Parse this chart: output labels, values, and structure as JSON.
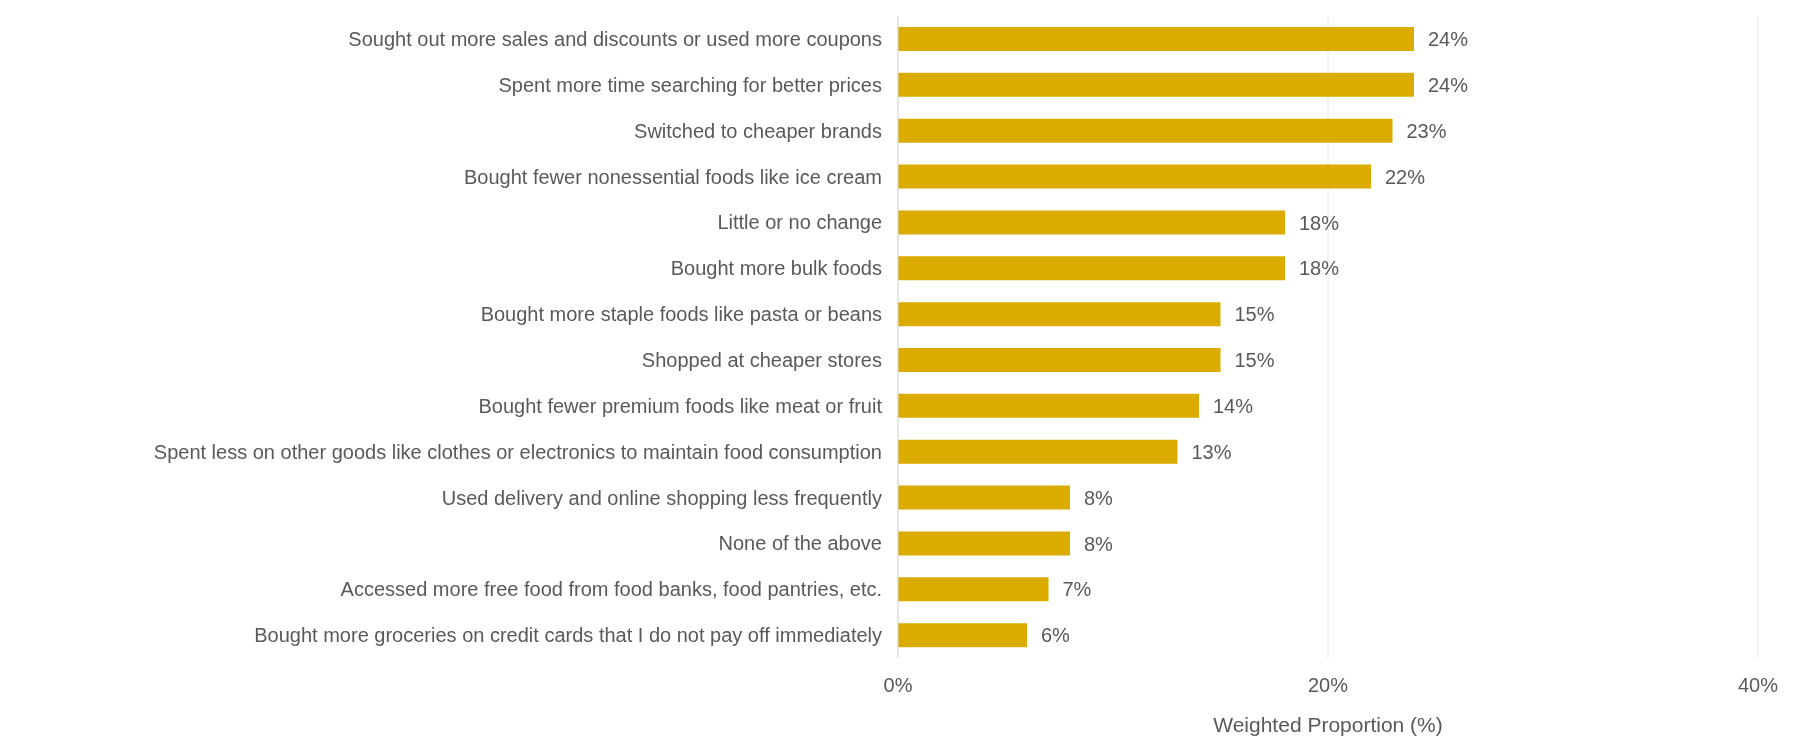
{
  "chart_data": {
    "type": "bar",
    "orientation": "horizontal",
    "xlabel": "Weighted Proportion (%)",
    "categories": [
      "Sought out more sales and discounts or used more coupons",
      "Spent more time searching for better prices",
      "Switched to cheaper brands ",
      "Bought fewer nonessential foods like ice cream",
      "Little or no change",
      "Bought more bulk foods",
      "Bought more staple foods like pasta or beans",
      "Shopped at cheaper stores",
      "Bought fewer premium foods like meat or fruit",
      "Spent less on other goods like clothes or electronics to maintain food consumption",
      "Used delivery and online shopping less frequently ",
      "None of the above",
      "Accessed more free food from food banks, food pantries, etc. ",
      "Bought more groceries on credit cards that I do not pay off immediately"
    ],
    "values": [
      24,
      24,
      23,
      22,
      18,
      18,
      15,
      15,
      14,
      13,
      8,
      8,
      7,
      6
    ],
    "value_labels": [
      "24%",
      "24%",
      "23%",
      "22%",
      "18%",
      "18%",
      "15%",
      "15%",
      "14%",
      "13%",
      "8%",
      "8%",
      "7%",
      "6%"
    ],
    "color": "#dbab00",
    "xlim": [
      0,
      40
    ],
    "xticks": [
      {
        "value": 0,
        "label": "0%"
      },
      {
        "value": 20,
        "label": "20%"
      },
      {
        "value": 40,
        "label": "40%"
      }
    ],
    "grid": "x"
  }
}
